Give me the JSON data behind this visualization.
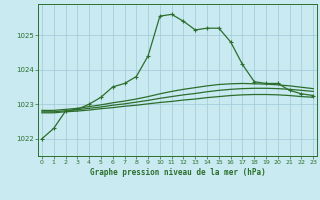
{
  "title": "Graphe pression niveau de la mer (hPa)",
  "background_color": "#c8eaf0",
  "grid_color": "#a0c8d8",
  "line_color": "#2d6e2d",
  "x_ticks": [
    0,
    1,
    2,
    3,
    4,
    5,
    6,
    7,
    8,
    9,
    10,
    11,
    12,
    13,
    14,
    15,
    16,
    17,
    18,
    19,
    20,
    21,
    22,
    23
  ],
  "y_ticks": [
    1022,
    1023,
    1024,
    1025
  ],
  "ylim": [
    1021.5,
    1025.9
  ],
  "xlim": [
    -0.3,
    23.3
  ],
  "main_line": [
    1022.0,
    1022.3,
    1022.8,
    1022.85,
    1023.0,
    1023.2,
    1023.5,
    1023.6,
    1023.8,
    1024.4,
    1025.55,
    1025.6,
    1025.4,
    1025.15,
    1025.2,
    1025.2,
    1024.8,
    1024.15,
    1023.65,
    1023.6,
    1023.6,
    1023.4,
    1023.3,
    1023.25
  ],
  "line2": [
    1022.75,
    1022.75,
    1022.78,
    1022.8,
    1022.83,
    1022.87,
    1022.9,
    1022.94,
    1022.97,
    1023.01,
    1023.05,
    1023.08,
    1023.12,
    1023.15,
    1023.19,
    1023.22,
    1023.25,
    1023.27,
    1023.28,
    1023.28,
    1023.27,
    1023.25,
    1023.22,
    1023.2
  ],
  "line3": [
    1022.78,
    1022.78,
    1022.81,
    1022.84,
    1022.88,
    1022.92,
    1022.97,
    1023.01,
    1023.06,
    1023.11,
    1023.17,
    1023.22,
    1023.27,
    1023.31,
    1023.36,
    1023.4,
    1023.43,
    1023.45,
    1023.46,
    1023.46,
    1023.45,
    1023.43,
    1023.4,
    1023.37
  ],
  "line4": [
    1022.82,
    1022.82,
    1022.85,
    1022.88,
    1022.93,
    1022.98,
    1023.04,
    1023.09,
    1023.15,
    1023.22,
    1023.3,
    1023.37,
    1023.43,
    1023.48,
    1023.53,
    1023.57,
    1023.59,
    1023.6,
    1023.59,
    1023.58,
    1023.56,
    1023.53,
    1023.49,
    1023.45
  ]
}
